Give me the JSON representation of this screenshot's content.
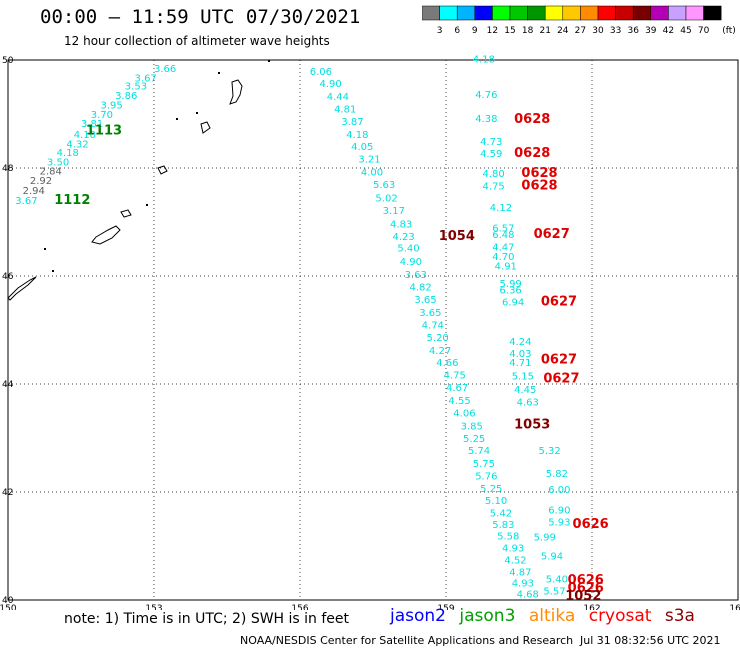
{
  "header": {
    "title": "00:00 – 11:59 UTC 07/30/2021",
    "subtitle": "12 hour collection of altimeter wave heights"
  },
  "colorbar": {
    "unit": "(ft)",
    "ticks": [
      "3",
      "6",
      "9",
      "12",
      "15",
      "18",
      "21",
      "24",
      "27",
      "30",
      "33",
      "36",
      "39",
      "42",
      "45",
      "70"
    ],
    "colors": [
      "#7a7a7a",
      "#00ffff",
      "#00b4ff",
      "#0000ff",
      "#00ff00",
      "#00c800",
      "#009600",
      "#ffff00",
      "#ffc800",
      "#ff8c00",
      "#ff0000",
      "#c80000",
      "#780000",
      "#b400b4",
      "#c8a0ff",
      "#ff96ff",
      "#000000"
    ]
  },
  "axes": {
    "lat": [
      "40",
      "42",
      "44",
      "46",
      "48",
      "50"
    ],
    "lon": [
      "150",
      "153",
      "156",
      "159",
      "162",
      "165"
    ],
    "lon_range": [
      150,
      165
    ],
    "lat_range": [
      40,
      50
    ]
  },
  "colors": {
    "cyan": "#00e0e0",
    "gray": "#606060",
    "green": "#008000",
    "red": "#e00000",
    "darkred": "#800000"
  },
  "observations": [
    {
      "v": "3.66",
      "lon": 153.0,
      "lat": 49.78,
      "c": "cyan"
    },
    {
      "v": "3.67",
      "lon": 152.6,
      "lat": 49.6,
      "c": "cyan"
    },
    {
      "v": "3.53",
      "lon": 152.4,
      "lat": 49.45,
      "c": "cyan"
    },
    {
      "v": "3.86",
      "lon": 152.2,
      "lat": 49.28,
      "c": "cyan"
    },
    {
      "v": "3.95",
      "lon": 151.9,
      "lat": 49.1,
      "c": "cyan"
    },
    {
      "v": "3.70",
      "lon": 151.7,
      "lat": 48.93,
      "c": "cyan"
    },
    {
      "v": "3.81",
      "lon": 151.5,
      "lat": 48.76,
      "c": "cyan"
    },
    {
      "v": "4.10",
      "lon": 151.35,
      "lat": 48.56,
      "c": "cyan"
    },
    {
      "v": "4.32",
      "lon": 151.2,
      "lat": 48.38,
      "c": "cyan"
    },
    {
      "v": "4.18",
      "lon": 151.0,
      "lat": 48.22,
      "c": "cyan"
    },
    {
      "v": "3.50",
      "lon": 150.8,
      "lat": 48.05,
      "c": "cyan"
    },
    {
      "v": "2.84",
      "lon": 150.65,
      "lat": 47.88,
      "c": "gray"
    },
    {
      "v": "2.92",
      "lon": 150.45,
      "lat": 47.7,
      "c": "gray"
    },
    {
      "v": "2.94",
      "lon": 150.3,
      "lat": 47.52,
      "c": "gray"
    },
    {
      "v": "3.67",
      "lon": 150.15,
      "lat": 47.33,
      "c": "cyan"
    },
    {
      "v": "6.06",
      "lon": 156.2,
      "lat": 49.72,
      "c": "cyan"
    },
    {
      "v": "4.90",
      "lon": 156.4,
      "lat": 49.5,
      "c": "cyan"
    },
    {
      "v": "4.44",
      "lon": 156.55,
      "lat": 49.26,
      "c": "cyan"
    },
    {
      "v": "4.81",
      "lon": 156.7,
      "lat": 49.03,
      "c": "cyan"
    },
    {
      "v": "3.87",
      "lon": 156.85,
      "lat": 48.8,
      "c": "cyan"
    },
    {
      "v": "4.18",
      "lon": 156.95,
      "lat": 48.56,
      "c": "cyan"
    },
    {
      "v": "4.05",
      "lon": 157.05,
      "lat": 48.33,
      "c": "cyan"
    },
    {
      "v": "3.21",
      "lon": 157.2,
      "lat": 48.1,
      "c": "cyan"
    },
    {
      "v": "4.00",
      "lon": 157.25,
      "lat": 47.86,
      "c": "cyan"
    },
    {
      "v": "5.63",
      "lon": 157.5,
      "lat": 47.63,
      "c": "cyan"
    },
    {
      "v": "5.02",
      "lon": 157.55,
      "lat": 47.38,
      "c": "cyan"
    },
    {
      "v": "3.17",
      "lon": 157.7,
      "lat": 47.15,
      "c": "cyan"
    },
    {
      "v": "4.83",
      "lon": 157.85,
      "lat": 46.9,
      "c": "cyan"
    },
    {
      "v": "4.23",
      "lon": 157.9,
      "lat": 46.67,
      "c": "cyan"
    },
    {
      "v": "5.40",
      "lon": 158.0,
      "lat": 46.45,
      "c": "cyan"
    },
    {
      "v": "4.90",
      "lon": 158.05,
      "lat": 46.2,
      "c": "cyan"
    },
    {
      "v": "3.63",
      "lon": 158.15,
      "lat": 45.96,
      "c": "cyan"
    },
    {
      "v": "4.82",
      "lon": 158.25,
      "lat": 45.73,
      "c": "cyan"
    },
    {
      "v": "3.65",
      "lon": 158.35,
      "lat": 45.5,
      "c": "cyan"
    },
    {
      "v": "3.65",
      "lon": 158.45,
      "lat": 45.26,
      "c": "cyan"
    },
    {
      "v": "4.74",
      "lon": 158.5,
      "lat": 45.03,
      "c": "cyan"
    },
    {
      "v": "5.20",
      "lon": 158.6,
      "lat": 44.8,
      "c": "cyan"
    },
    {
      "v": "4.27",
      "lon": 158.65,
      "lat": 44.56,
      "c": "cyan"
    },
    {
      "v": "4.66",
      "lon": 158.8,
      "lat": 44.33,
      "c": "cyan"
    },
    {
      "v": "4.75",
      "lon": 158.95,
      "lat": 44.1,
      "c": "cyan"
    },
    {
      "v": "4.67",
      "lon": 159.0,
      "lat": 43.87,
      "c": "cyan"
    },
    {
      "v": "4.55",
      "lon": 159.05,
      "lat": 43.63,
      "c": "cyan"
    },
    {
      "v": "4.06",
      "lon": 159.15,
      "lat": 43.4,
      "c": "cyan"
    },
    {
      "v": "3.85",
      "lon": 159.3,
      "lat": 43.16,
      "c": "cyan"
    },
    {
      "v": "5.25",
      "lon": 159.35,
      "lat": 42.93,
      "c": "cyan"
    },
    {
      "v": "5.74",
      "lon": 159.45,
      "lat": 42.7,
      "c": "cyan"
    },
    {
      "v": "5.75",
      "lon": 159.55,
      "lat": 42.46,
      "c": "cyan"
    },
    {
      "v": "5.76",
      "lon": 159.6,
      "lat": 42.23,
      "c": "cyan"
    },
    {
      "v": "5.25",
      "lon": 159.7,
      "lat": 42.0,
      "c": "cyan"
    },
    {
      "v": "5.10",
      "lon": 159.8,
      "lat": 41.78,
      "c": "cyan"
    },
    {
      "v": "5.42",
      "lon": 159.9,
      "lat": 41.55,
      "c": "cyan"
    },
    {
      "v": "5.83",
      "lon": 159.95,
      "lat": 41.33,
      "c": "cyan"
    },
    {
      "v": "5.58",
      "lon": 160.05,
      "lat": 41.12,
      "c": "cyan"
    },
    {
      "v": "4.93",
      "lon": 160.15,
      "lat": 40.9,
      "c": "cyan"
    },
    {
      "v": "4.52",
      "lon": 160.2,
      "lat": 40.68,
      "c": "cyan"
    },
    {
      "v": "4.87",
      "lon": 160.3,
      "lat": 40.45,
      "c": "cyan"
    },
    {
      "v": "4.93",
      "lon": 160.35,
      "lat": 40.25,
      "c": "cyan"
    },
    {
      "v": "4.68",
      "lon": 160.45,
      "lat": 40.05,
      "c": "cyan"
    },
    {
      "v": "4.18",
      "lon": 159.55,
      "lat": 49.95,
      "c": "cyan"
    },
    {
      "v": "4.76",
      "lon": 159.6,
      "lat": 49.3,
      "c": "cyan"
    },
    {
      "v": "4.38",
      "lon": 159.6,
      "lat": 48.85,
      "c": "cyan"
    },
    {
      "v": "4.73",
      "lon": 159.7,
      "lat": 48.43,
      "c": "cyan"
    },
    {
      "v": "4.59",
      "lon": 159.7,
      "lat": 48.2,
      "c": "cyan"
    },
    {
      "v": "4.80",
      "lon": 159.75,
      "lat": 47.83,
      "c": "cyan"
    },
    {
      "v": "4.75",
      "lon": 159.75,
      "lat": 47.6,
      "c": "cyan"
    },
    {
      "v": "4.12",
      "lon": 159.9,
      "lat": 47.2,
      "c": "cyan"
    },
    {
      "v": "6.57",
      "lon": 159.95,
      "lat": 46.82,
      "c": "cyan"
    },
    {
      "v": "6.48",
      "lon": 159.95,
      "lat": 46.7,
      "c": "cyan"
    },
    {
      "v": "4.47",
      "lon": 159.95,
      "lat": 46.47,
      "c": "cyan"
    },
    {
      "v": "4.70",
      "lon": 159.95,
      "lat": 46.3,
      "c": "cyan"
    },
    {
      "v": "4.91",
      "lon": 160.0,
      "lat": 46.12,
      "c": "cyan"
    },
    {
      "v": "5.99",
      "lon": 160.1,
      "lat": 45.8,
      "c": "cyan"
    },
    {
      "v": "6.36",
      "lon": 160.1,
      "lat": 45.68,
      "c": "cyan"
    },
    {
      "v": "6.94",
      "lon": 160.15,
      "lat": 45.45,
      "c": "cyan"
    },
    {
      "v": "4.24",
      "lon": 160.3,
      "lat": 44.72,
      "c": "cyan"
    },
    {
      "v": "4.03",
      "lon": 160.3,
      "lat": 44.5,
      "c": "cyan"
    },
    {
      "v": "4.71",
      "lon": 160.3,
      "lat": 44.33,
      "c": "cyan"
    },
    {
      "v": "5.15",
      "lon": 160.35,
      "lat": 44.08,
      "c": "cyan"
    },
    {
      "v": "4.45",
      "lon": 160.4,
      "lat": 43.83,
      "c": "cyan"
    },
    {
      "v": "4.63",
      "lon": 160.45,
      "lat": 43.6,
      "c": "cyan"
    },
    {
      "v": "5.32",
      "lon": 160.9,
      "lat": 42.7,
      "c": "cyan"
    },
    {
      "v": "5.82",
      "lon": 161.05,
      "lat": 42.28,
      "c": "cyan"
    },
    {
      "v": "6.00",
      "lon": 161.1,
      "lat": 41.98,
      "c": "cyan"
    },
    {
      "v": "6.90",
      "lon": 161.1,
      "lat": 41.6,
      "c": "cyan"
    },
    {
      "v": "5.93",
      "lon": 161.1,
      "lat": 41.38,
      "c": "cyan"
    },
    {
      "v": "5.99",
      "lon": 160.8,
      "lat": 41.1,
      "c": "cyan"
    },
    {
      "v": "5.94",
      "lon": 160.95,
      "lat": 40.75,
      "c": "cyan"
    },
    {
      "v": "5.40",
      "lon": 161.05,
      "lat": 40.32,
      "c": "cyan"
    },
    {
      "v": "5.57",
      "lon": 161.0,
      "lat": 40.1,
      "c": "cyan"
    }
  ],
  "passes": [
    {
      "id": "1113",
      "lon": 151.6,
      "lat": 48.62,
      "c": "green"
    },
    {
      "id": "1112",
      "lon": 150.95,
      "lat": 47.33,
      "c": "green"
    },
    {
      "id": "0628",
      "lon": 160.4,
      "lat": 48.83,
      "c": "red"
    },
    {
      "id": "0628",
      "lon": 160.4,
      "lat": 48.2,
      "c": "red"
    },
    {
      "id": "0628",
      "lon": 160.55,
      "lat": 47.83,
      "c": "red"
    },
    {
      "id": "0628",
      "lon": 160.55,
      "lat": 47.6,
      "c": "red"
    },
    {
      "id": "1054",
      "lon": 158.85,
      "lat": 46.67,
      "c": "darkred"
    },
    {
      "id": "0627",
      "lon": 160.8,
      "lat": 46.7,
      "c": "red"
    },
    {
      "id": "0627",
      "lon": 160.95,
      "lat": 45.45,
      "c": "red"
    },
    {
      "id": "0627",
      "lon": 160.95,
      "lat": 44.38,
      "c": "red"
    },
    {
      "id": "0627",
      "lon": 161.0,
      "lat": 44.03,
      "c": "red"
    },
    {
      "id": "1053",
      "lon": 160.4,
      "lat": 43.18,
      "c": "darkred"
    },
    {
      "id": "0626",
      "lon": 161.6,
      "lat": 41.33,
      "c": "red"
    },
    {
      "id": "0626",
      "lon": 161.5,
      "lat": 40.3,
      "c": "red"
    },
    {
      "id": "0626",
      "lon": 161.5,
      "lat": 40.15,
      "c": "red"
    },
    {
      "id": "1052",
      "lon": 161.45,
      "lat": 40.0,
      "c": "darkred"
    }
  ],
  "footer": {
    "note": "note:  1) Time is in UTC;  2) SWH is in feet",
    "legend": [
      {
        "label": "jason2",
        "color": "#0000ff"
      },
      {
        "label": "jason3",
        "color": "#00a000"
      },
      {
        "label": "altika",
        "color": "#ff8c00"
      },
      {
        "label": "cryosat",
        "color": "#ff0000"
      },
      {
        "label": "s3a",
        "color": "#8b0000"
      }
    ],
    "credit": "NOAA/NESDIS Center for Satellite Applications and Research",
    "timestamp": "Jul 31 08:32:56 UTC 2021"
  }
}
